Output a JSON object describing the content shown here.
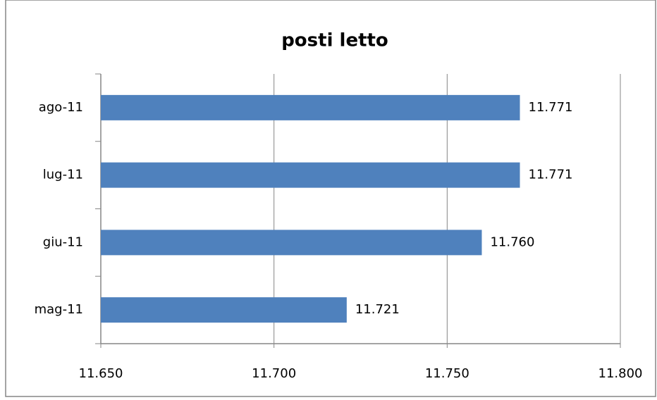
{
  "chart_data": {
    "type": "bar",
    "orientation": "horizontal",
    "title": "posti letto",
    "categories": [
      "mag-11",
      "giu-11",
      "lug-11",
      "ago-11"
    ],
    "values": [
      11721,
      11760,
      11771,
      11771
    ],
    "value_labels": [
      "11.721",
      "11.760",
      "11.771",
      "11.771"
    ],
    "color": "#4f81bd",
    "xlim": [
      11650,
      11800
    ],
    "xticks": [
      {
        "value": 11650,
        "label": "11.650"
      },
      {
        "value": 11700,
        "label": "11.700"
      },
      {
        "value": 11750,
        "label": "11.750"
      },
      {
        "value": 11800,
        "label": "11.800"
      }
    ],
    "grid": true
  }
}
